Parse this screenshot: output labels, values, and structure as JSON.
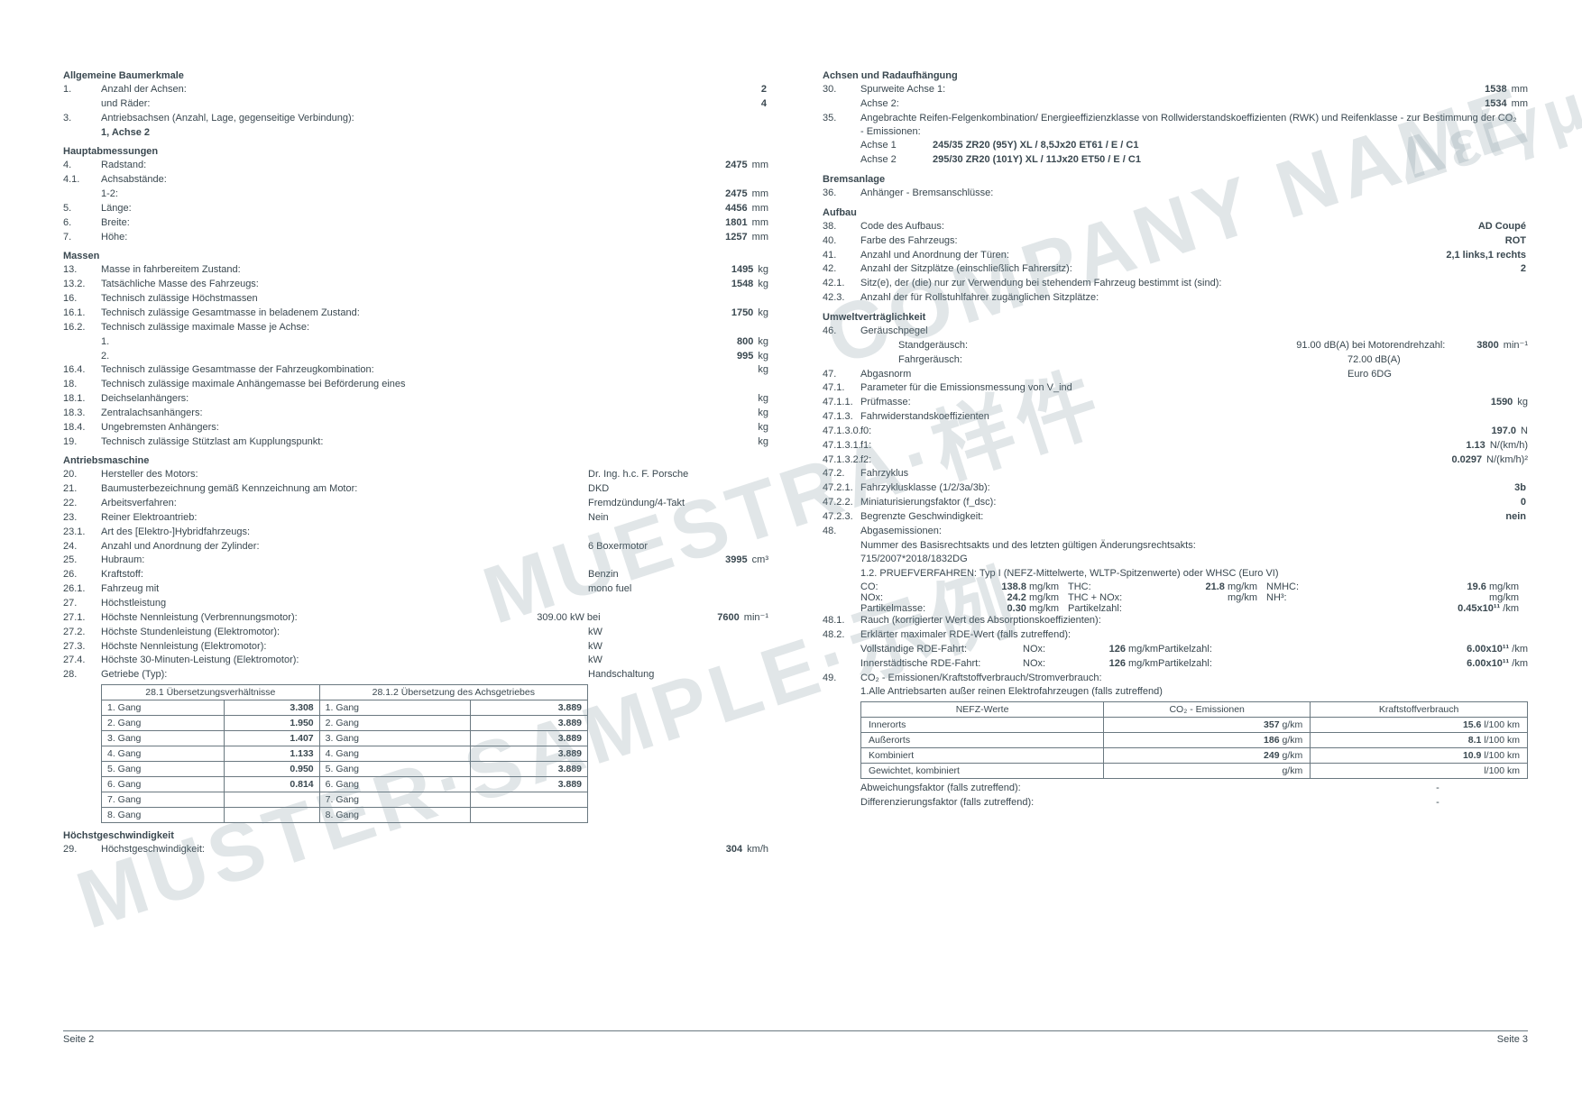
{
  "watermarks": [
    "COMPANY NAME",
    "MUESTRA·样件",
    "MUSTER·SAMPLE·示例",
    "Δείγμα"
  ],
  "left": {
    "sections": {
      "allgemeine": {
        "title": "Allgemeine Baumerkmale",
        "rows": [
          {
            "n": "1.",
            "l": "Anzahl der Achsen:",
            "v": "2",
            "u": ""
          },
          {
            "n": "",
            "l": "und Räder:",
            "v": "4",
            "u": ""
          },
          {
            "n": "3.",
            "l": "Antriebsachsen (Anzahl, Lage, gegenseitige Verbindung):",
            "v": "",
            "u": ""
          },
          {
            "n": "",
            "l": "1, Achse 2",
            "v": "",
            "u": "",
            "bold": true
          }
        ]
      },
      "haupt": {
        "title": "Hauptabmessungen",
        "rows": [
          {
            "n": "4.",
            "l": "Radstand:",
            "v": "2475",
            "u": "mm"
          },
          {
            "n": "4.1.",
            "l": "Achsabstände:",
            "v": "",
            "u": ""
          },
          {
            "n": "",
            "l": "1-2:",
            "v": "2475",
            "u": "mm"
          },
          {
            "n": "5.",
            "l": "Länge:",
            "v": "4456",
            "u": "mm"
          },
          {
            "n": "6.",
            "l": "Breite:",
            "v": "1801",
            "u": "mm"
          },
          {
            "n": "7.",
            "l": "Höhe:",
            "v": "1257",
            "u": "mm"
          }
        ]
      },
      "massen": {
        "title": "Massen",
        "rows": [
          {
            "n": "13.",
            "l": "Masse in fahrbereitem Zustand:",
            "v": "1495",
            "u": "kg"
          },
          {
            "n": "13.2.",
            "l": "Tatsächliche Masse des Fahrzeugs:",
            "v": "1548",
            "u": "kg"
          },
          {
            "n": "16.",
            "l": "Technisch zulässige Höchstmassen",
            "v": "",
            "u": ""
          },
          {
            "n": "16.1.",
            "l": "Technisch zulässige Gesamtmasse in beladenem Zustand:",
            "v": "1750",
            "u": "kg"
          },
          {
            "n": "16.2.",
            "l": "Technisch zulässige maximale Masse je Achse:",
            "v": "",
            "u": ""
          },
          {
            "n": "",
            "l": "1.",
            "v": "800",
            "u": "kg"
          },
          {
            "n": "",
            "l": "2.",
            "v": "995",
            "u": "kg"
          },
          {
            "n": "16.4.",
            "l": "Technisch zulässige Gesamtmasse der Fahrzeugkombination:",
            "v": "",
            "u": "kg"
          },
          {
            "n": "18.",
            "l": "Technisch zulässige maximale Anhängemasse bei Beförderung eines",
            "v": "",
            "u": ""
          },
          {
            "n": "18.1.",
            "l": "Deichselanhängers:",
            "v": "",
            "u": "kg"
          },
          {
            "n": "18.3.",
            "l": "Zentralachsanhängers:",
            "v": "",
            "u": "kg"
          },
          {
            "n": "18.4.",
            "l": "Ungebremsten Anhängers:",
            "v": "",
            "u": "kg"
          },
          {
            "n": "19.",
            "l": "Technisch zulässige Stützlast am Kupplungspunkt:",
            "v": "",
            "u": "kg"
          }
        ]
      },
      "antrieb": {
        "title": "Antriebsmaschine",
        "rows": [
          {
            "n": "20.",
            "l": "Hersteller des Motors:",
            "mid": "Dr. Ing. h.c. F. Porsche"
          },
          {
            "n": "21.",
            "l": "Baumusterbezeichnung gemäß Kennzeichnung am Motor:",
            "mid": "DKD"
          },
          {
            "n": "22.",
            "l": "Arbeitsverfahren:",
            "mid": "Fremdzündung/4-Takt"
          },
          {
            "n": "23.",
            "l": "Reiner Elektroantrieb:",
            "mid": "Nein"
          },
          {
            "n": "23.1.",
            "l": "Art des [Elektro-]Hybridfahrzeugs:",
            "mid": ""
          },
          {
            "n": "24.",
            "l": "Anzahl und Anordnung der Zylinder:",
            "mid": "6 Boxermotor"
          },
          {
            "n": "25.",
            "l": "Hubraum:",
            "v": "3995",
            "u": "cm³"
          },
          {
            "n": "26.",
            "l": "Kraftstoff:",
            "mid": "Benzin"
          },
          {
            "n": "26.1.",
            "l": "Fahrzeug mit",
            "mid": "mono fuel"
          },
          {
            "n": "27.",
            "l": "Höchstleistung",
            "mid": ""
          },
          {
            "n": "27.1.",
            "l": "Höchste Nennleistung (Verbrennungsmotor):",
            "mid": "309.00 kW bei",
            "v": "7600",
            "u": "min⁻¹"
          },
          {
            "n": "27.2.",
            "l": "Höchste Stundenleistung (Elektromotor):",
            "mid": "kW"
          },
          {
            "n": "27.3.",
            "l": "Höchste Nennleistung (Elektromotor):",
            "mid": "kW"
          },
          {
            "n": "27.4.",
            "l": "Höchste 30-Minuten-Leistung (Elektromotor):",
            "mid": "kW"
          },
          {
            "n": "28.",
            "l": "Getriebe (Typ):",
            "mid": "Handschaltung"
          }
        ]
      },
      "gears": {
        "h1": "28.1 Übersetzungsverhältnisse",
        "h2": "28.1.2 Übersetzung des Achsgetriebes",
        "rows": [
          [
            "1. Gang",
            "3.308",
            "1. Gang",
            "3.889"
          ],
          [
            "2. Gang",
            "1.950",
            "2. Gang",
            "3.889"
          ],
          [
            "3. Gang",
            "1.407",
            "3. Gang",
            "3.889"
          ],
          [
            "4. Gang",
            "1.133",
            "4. Gang",
            "3.889"
          ],
          [
            "5. Gang",
            "0.950",
            "5. Gang",
            "3.889"
          ],
          [
            "6. Gang",
            "0.814",
            "6. Gang",
            "3.889"
          ],
          [
            "7. Gang",
            "",
            "7. Gang",
            ""
          ],
          [
            "8. Gang",
            "",
            "8. Gang",
            ""
          ]
        ]
      },
      "speed": {
        "title": "Höchstgeschwindigkeit",
        "rows": [
          {
            "n": "29.",
            "l": "Höchstgeschwindigkeit:",
            "v": "304",
            "u": "km/h"
          }
        ]
      }
    }
  },
  "right": {
    "achsen": {
      "title": "Achsen und Radaufhängung",
      "rows": [
        {
          "n": "30.",
          "l": "Spurweite        Achse 1:",
          "v": "1538",
          "u": "mm"
        },
        {
          "n": "",
          "l": "                        Achse 2:",
          "v": "1534",
          "u": "mm"
        },
        {
          "n": "35.",
          "l": "Angebrachte Reifen-Felgenkombination/ Energieeffizienzklasse von Rollwiderstandskoeffizienten (RWK) und Reifenklasse - zur Bestimmung der CO₂ - Emissionen:",
          "v": "",
          "u": ""
        }
      ],
      "tires": [
        {
          "l": "Achse 1",
          "v": "245/35 ZR20 (95Y) XL / 8,5Jx20 ET61 / E / C1"
        },
        {
          "l": "Achse 2",
          "v": "295/30 ZR20 (101Y) XL / 11Jx20 ET50 / E / C1"
        }
      ]
    },
    "brems": {
      "title": "Bremsanlage",
      "rows": [
        {
          "n": "36.",
          "l": "Anhänger - Bremsanschlüsse:",
          "v": "",
          "u": ""
        }
      ]
    },
    "aufbau": {
      "title": "Aufbau",
      "rows": [
        {
          "n": "38.",
          "l": "Code des Aufbaus:",
          "v": "AD Coupé",
          "u": ""
        },
        {
          "n": "40.",
          "l": "Farbe des Fahrzeugs:",
          "v": "ROT",
          "u": ""
        },
        {
          "n": "41.",
          "l": "Anzahl und Anordnung der Türen:",
          "v": "2,1 links,1 rechts",
          "u": ""
        },
        {
          "n": "42.",
          "l": "Anzahl der Sitzplätze (einschließlich Fahrersitz):",
          "v": "2",
          "u": ""
        },
        {
          "n": "42.1.",
          "l": "Sitz(e), der (die) nur zur Verwendung bei stehendem Fahrzeug bestimmt ist (sind):",
          "v": "",
          "u": ""
        },
        {
          "n": "42.3.",
          "l": "Anzahl der für Rollstuhlfahrer zugänglichen Sitzplätze:",
          "v": "",
          "u": ""
        }
      ]
    },
    "umwelt": {
      "title": "Umweltverträglichkeit",
      "rows1": [
        {
          "n": "46.",
          "l": "Geräuschpegel"
        },
        {
          "indent": true,
          "l": "Standgeräusch:",
          "mid": "91.00 dB(A) bei Motorendrehzahl:",
          "v": "3800",
          "u": "min⁻¹"
        },
        {
          "indent": true,
          "l": "Fahrgeräusch:",
          "mid": "72.00 dB(A)"
        },
        {
          "n": "47.",
          "l": "Abgasnorm",
          "mid": "Euro 6DG"
        },
        {
          "n": "47.1.",
          "l": "Parameter für die Emissionsmessung von V_ind"
        },
        {
          "n": "47.1.1.",
          "l": "Prüfmasse:",
          "v": "1590",
          "u": "kg"
        },
        {
          "n": "47.1.3.",
          "l": "Fahrwiderstandskoeffizienten"
        },
        {
          "n": "47.1.3.0.",
          "l": "f0:",
          "v": "197.0",
          "u": "N"
        },
        {
          "n": "47.1.3.1.",
          "l": "f1:",
          "v": "1.13",
          "u": "N/(km/h)"
        },
        {
          "n": "47.1.3.2.",
          "l": "f2:",
          "v": "0.0297",
          "u": "N/(km/h)²"
        },
        {
          "n": "47.2.",
          "l": "Fahrzyklus"
        },
        {
          "n": "47.2.1.",
          "l": "Fahrzyklusklasse (1/2/3a/3b):",
          "v": "3b",
          "u": ""
        },
        {
          "n": "47.2.2.",
          "l": "Miniaturisierungsfaktor (f_dsc):",
          "v": "0",
          "u": ""
        },
        {
          "n": "47.2.3.",
          "l": "Begrenzte Geschwindigkeit:",
          "v": "nein",
          "u": ""
        },
        {
          "n": "48.",
          "l": "Abgasemissionen:"
        }
      ],
      "reg": "Nummer des Basisrechtsakts und des letzten gültigen Änderungsrechtsakts:",
      "regnum": "715/2007*2018/1832DG",
      "test": "1.2. PRUEFVERFAHREN: Typ I (NEFZ-Mittelwerte, WLTP-Spitzenwerte) oder WHSC (Euro VI)",
      "emis": [
        [
          "CO:",
          "138.8",
          "mg/km",
          "THC:",
          "21.8",
          "mg/km",
          "NMHC:",
          "19.6",
          "mg/km"
        ],
        [
          "NOx:",
          "24.2",
          "mg/km",
          "THC + NOx:",
          "",
          "mg/km",
          "NH³:",
          "",
          "mg/km"
        ],
        [
          "Partikelmasse:",
          "0.30",
          "mg/km",
          "Partikelzahl:",
          "",
          "",
          "",
          "0.45x10¹¹",
          "/km"
        ]
      ],
      "rows2": [
        {
          "n": "48.1.",
          "l": "Rauch (korrigierter Wert des Absorptionskoeffizienten):"
        },
        {
          "n": "48.2.",
          "l": "Erklärter maximaler RDE-Wert (falls zutreffend):"
        }
      ],
      "rde": [
        {
          "l": "Vollständige RDE-Fahrt:",
          "m": "NOx:",
          "mv": "126",
          "mu": "mg/km",
          "p": "Partikelzahl:",
          "pv": "6.00x10¹¹",
          "pu": "/km"
        },
        {
          "l": "Innerstädtische RDE-Fahrt:",
          "m": "NOx:",
          "mv": "126",
          "mu": "mg/km",
          "p": "Partikelzahl:",
          "pv": "6.00x10¹¹",
          "pu": "/km"
        }
      ],
      "r49": {
        "n": "49.",
        "l": "CO₂ - Emissionen/Kraftstoffverbrauch/Stromverbrauch:",
        "sub": "1.Alle Antriebsarten außer reinen Elektrofahrzeugen (falls zutreffend)"
      },
      "co2table": {
        "headers": [
          "NEFZ-Werte",
          "CO₂ - Emissionen",
          "Kraftstoffverbrauch"
        ],
        "rows": [
          [
            "Innerorts",
            "357 g/km",
            "15.6 l/100 km"
          ],
          [
            "Außerorts",
            "186 g/km",
            "8.1 l/100 km"
          ],
          [
            "Kombiniert",
            "249 g/km",
            "10.9 l/100 km"
          ],
          [
            "Gewichtet, kombiniert",
            "g/km",
            "l/100 km"
          ]
        ]
      },
      "after": [
        "Abweichungsfaktor (falls zutreffend):",
        "Differenzierungsfaktor (falls zutreffend):"
      ]
    }
  },
  "footer": {
    "left": "Seite 2",
    "right": "Seite 3"
  }
}
